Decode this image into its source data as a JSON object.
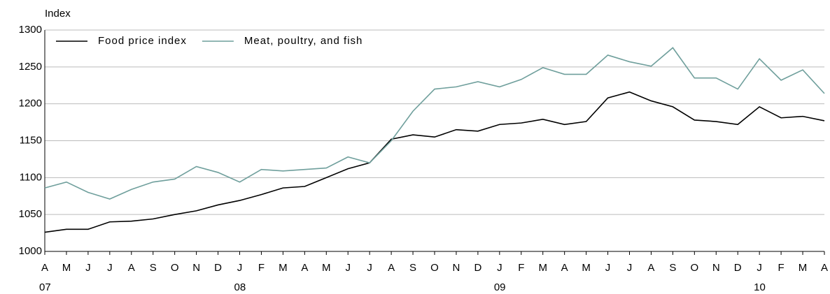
{
  "chart_data": {
    "type": "line",
    "y_label": "Index",
    "categories": [
      "A",
      "M",
      "J",
      "J",
      "A",
      "S",
      "O",
      "N",
      "D",
      "J",
      "F",
      "M",
      "A",
      "M",
      "J",
      "J",
      "A",
      "S",
      "O",
      "N",
      "D",
      "J",
      "F",
      "M",
      "A",
      "M",
      "J",
      "J",
      "A",
      "S",
      "O",
      "N",
      "D",
      "J",
      "F",
      "M",
      "A"
    ],
    "year_groups": [
      {
        "label": "07",
        "start": 0
      },
      {
        "label": "08",
        "start": 9
      },
      {
        "label": "09",
        "start": 21
      },
      {
        "label": "10",
        "start": 33
      }
    ],
    "series": [
      {
        "name": "Food price index",
        "color": "#000000",
        "values": [
          1026,
          1030,
          1030,
          1040,
          1041,
          1044,
          1050,
          1055,
          1063,
          1069,
          1077,
          1086,
          1088,
          1100,
          1112,
          1120,
          1152,
          1158,
          1155,
          1165,
          1163,
          1172,
          1174,
          1179,
          1172,
          1176,
          1208,
          1216,
          1204,
          1196,
          1178,
          1176,
          1172,
          1196,
          1181,
          1183,
          1177
        ]
      },
      {
        "name": "Meat, poultry, and fish",
        "color": "#6f9f9c",
        "values": [
          1086,
          1094,
          1080,
          1071,
          1084,
          1094,
          1098,
          1115,
          1107,
          1094,
          1111,
          1109,
          1111,
          1113,
          1128,
          1120,
          1150,
          1190,
          1220,
          1223,
          1230,
          1223,
          1233,
          1249,
          1240,
          1240,
          1266,
          1257,
          1251,
          1276,
          1235,
          1235,
          1220,
          1261,
          1232,
          1246,
          1214
        ]
      }
    ],
    "ylim": [
      1000,
      1300
    ],
    "yticks": [
      1000,
      1050,
      1100,
      1150,
      1200,
      1250,
      1300
    ],
    "grid": true,
    "legend": "top-left"
  }
}
